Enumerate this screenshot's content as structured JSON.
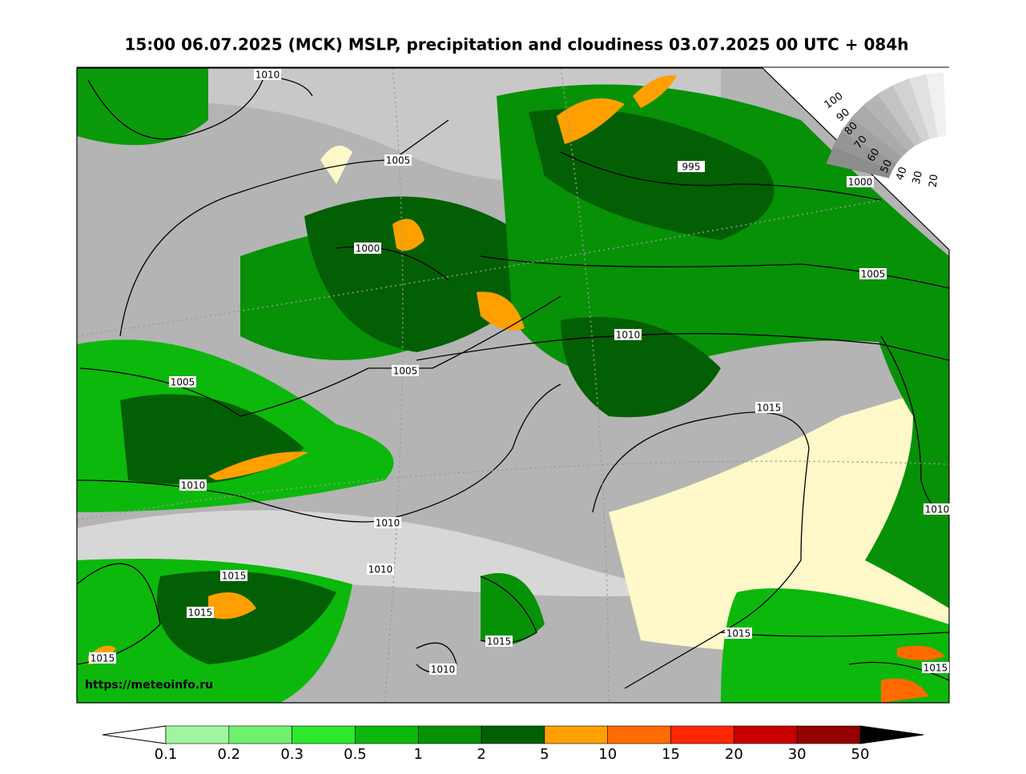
{
  "header": {
    "title": "15:00 06.07.2025 (MCK) MSLP, precipitation and cloudiness 03.07.2025 00 UTC + 084h"
  },
  "map": {
    "url": "https://meteoinfo.ru",
    "isobar_labels": [
      "1010",
      "1005",
      "995",
      "1000",
      "1000",
      "1005",
      "1010",
      "1005",
      "1005",
      "1015",
      "1010",
      "1010",
      "1010",
      "1010",
      "1015",
      "1015",
      "1015",
      "1015",
      "1010",
      "1015",
      "1015"
    ]
  },
  "cloud_scale": {
    "labels": [
      "100",
      "90",
      "80",
      "70",
      "60",
      "50",
      "40",
      "30",
      "20"
    ],
    "colors": [
      "#8c8c8c",
      "#969696",
      "#a0a0a0",
      "#aaaaaa",
      "#b4b4b4",
      "#c3c3c3",
      "#d2d2d2",
      "#e1e1e1",
      "#f0f0f0"
    ]
  },
  "colorbar": {
    "labels": [
      "0.1",
      "0.2",
      "0.3",
      "0.5",
      "1",
      "2",
      "5",
      "10",
      "15",
      "20",
      "30",
      "50"
    ],
    "colors": [
      "#a0f5a0",
      "#6ef26e",
      "#2ee82e",
      "#0cb80c",
      "#079107",
      "#035f03",
      "#ffa000",
      "#ff6b00",
      "#ff2800",
      "#c80000",
      "#960000"
    ],
    "under_color": "#ffffff",
    "over_color": "#000000"
  }
}
